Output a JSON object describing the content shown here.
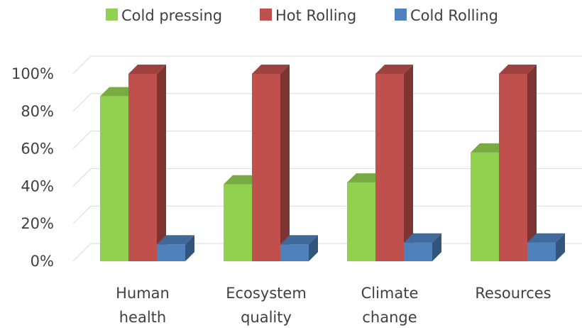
{
  "chart_data": {
    "type": "bar",
    "categories": [
      [
        "Human",
        "health"
      ],
      [
        "Ecosystem",
        "quality"
      ],
      [
        "Climate",
        "change"
      ],
      [
        "Resources"
      ]
    ],
    "series": [
      {
        "name": "Cold pressing",
        "values": [
          88,
          41,
          42,
          58
        ],
        "color": "#92D050"
      },
      {
        "name": "Hot Rolling",
        "values": [
          100,
          100,
          100,
          100
        ],
        "color": "#C0504D"
      },
      {
        "name": "Cold Rolling",
        "values": [
          9,
          9,
          10,
          10
        ],
        "color": "#4F81BD"
      }
    ],
    "ylim": [
      0,
      100
    ],
    "yticks": [
      "0%",
      "20%",
      "40%",
      "60%",
      "80%",
      "100%"
    ],
    "ytick_values": [
      0,
      20,
      40,
      60,
      80,
      100
    ],
    "legend_position": "top",
    "grid": true
  }
}
